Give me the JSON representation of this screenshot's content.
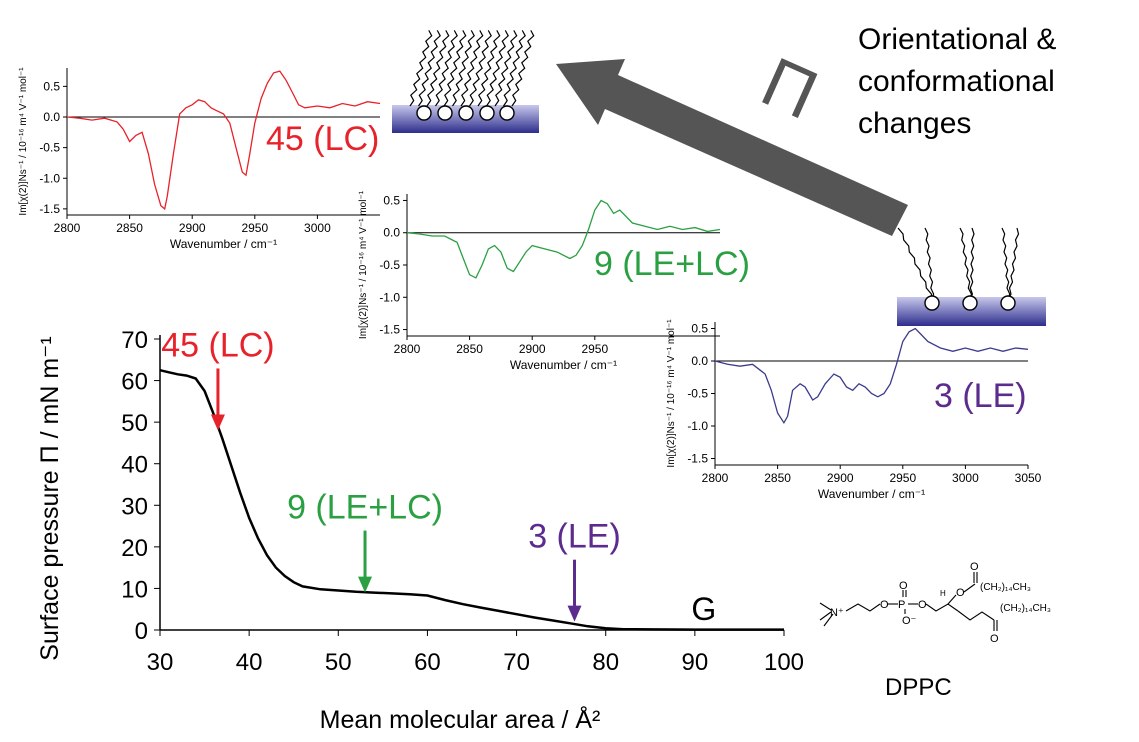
{
  "orientation_text": [
    "Orientational &",
    "conformational",
    "changes"
  ],
  "pressure_symbol": "Π",
  "molecule": {
    "name": "DPPC"
  },
  "colors": {
    "lc": "#e8222b",
    "lele": "#2aa042",
    "le": "#5b2c8e",
    "le_spec": "#3b3b8e",
    "arrow": "#555555"
  },
  "chart_data": [
    {
      "id": "isotherm",
      "type": "line",
      "title": "",
      "xlabel": "Mean molecular area / Å²",
      "ylabel": "Surface pressure Π / mN m⁻¹",
      "xlim": [
        30,
        100
      ],
      "ylim": [
        0,
        70
      ],
      "xticks": [
        30,
        40,
        50,
        60,
        70,
        80,
        90,
        100
      ],
      "yticks": [
        0,
        10,
        20,
        30,
        40,
        50,
        60,
        70
      ],
      "grid": false,
      "series": [
        {
          "x": [
            30,
            31,
            32,
            33,
            34,
            35,
            36,
            37,
            38,
            39,
            40,
            41,
            42,
            43,
            44,
            45,
            46,
            48,
            50,
            52,
            54,
            56,
            58,
            60,
            62,
            64,
            66,
            68,
            70,
            72,
            74,
            76,
            78,
            80,
            82,
            85,
            90,
            95,
            100
          ],
          "y": [
            62.5,
            62,
            61.5,
            61.2,
            60.5,
            57.5,
            52,
            46,
            39.5,
            33,
            27,
            22,
            18,
            15,
            13,
            11.5,
            10.5,
            9.8,
            9.5,
            9.2,
            9,
            8.8,
            8.6,
            8.3,
            7.2,
            6.2,
            5.4,
            4.6,
            3.8,
            3,
            2.3,
            1.6,
            0.9,
            0.4,
            0.2,
            0.15,
            0.1,
            0.1,
            0.1
          ]
        }
      ],
      "annotations": [
        {
          "text": "45 (LC)",
          "x": 36.5,
          "y": 48,
          "color": "#e8222b"
        },
        {
          "text": "9 (LE+LC)",
          "x": 53,
          "y": 9,
          "color": "#2aa042"
        },
        {
          "text": "3 (LE)",
          "x": 76.5,
          "y": 2,
          "color": "#5b2c8e"
        },
        {
          "text": "G",
          "x": 91,
          "y": 1.5,
          "color": "#000000"
        }
      ]
    },
    {
      "id": "spectrum-lc",
      "type": "line",
      "xlabel": "Wavenumber / cm⁻¹",
      "ylabel": "Im[χ(2)]Ns⁻¹ / 10⁻¹⁶ m⁴ V⁻¹ mol⁻¹",
      "xlim": [
        2800,
        3050
      ],
      "ylim": [
        -1.6,
        0.8
      ],
      "xticks": [
        2800,
        2850,
        2900,
        2950,
        3000
      ],
      "yticks": [
        0.5,
        0.0,
        -0.5,
        -1.0,
        -1.5
      ],
      "label": "45 (LC)",
      "series": [
        {
          "x": [
            2800,
            2810,
            2820,
            2830,
            2840,
            2845,
            2850,
            2855,
            2860,
            2865,
            2870,
            2875,
            2878,
            2880,
            2885,
            2890,
            2895,
            2900,
            2905,
            2910,
            2915,
            2920,
            2925,
            2930,
            2935,
            2940,
            2943,
            2946,
            2950,
            2955,
            2960,
            2965,
            2970,
            2975,
            2980,
            2985,
            2990,
            3000,
            3010,
            3020,
            3030,
            3040,
            3050
          ],
          "y": [
            0,
            -0.02,
            -0.05,
            -0.02,
            -0.08,
            -0.2,
            -0.4,
            -0.3,
            -0.25,
            -0.6,
            -1.1,
            -1.45,
            -1.5,
            -1.3,
            -0.6,
            0.05,
            0.15,
            0.2,
            0.28,
            0.25,
            0.15,
            0.1,
            0.05,
            -0.1,
            -0.5,
            -0.9,
            -0.95,
            -0.6,
            -0.1,
            0.3,
            0.55,
            0.72,
            0.75,
            0.6,
            0.4,
            0.2,
            0.15,
            0.18,
            0.15,
            0.22,
            0.18,
            0.25,
            0.22
          ]
        }
      ]
    },
    {
      "id": "spectrum-lele",
      "type": "line",
      "xlabel": "Wavenumber / cm⁻¹",
      "ylabel": "Im[χ(2)]Ns⁻¹ / 10⁻¹⁶ m⁴ V⁻¹ mol⁻¹",
      "xlim": [
        2800,
        3050
      ],
      "ylim": [
        -1.6,
        0.6
      ],
      "xticks": [
        2800,
        2850,
        2900,
        2950
      ],
      "yticks": [
        0.5,
        0.0,
        -0.5,
        -1.0,
        -1.5
      ],
      "label": "9 (LE+LC)",
      "series": [
        {
          "x": [
            2800,
            2810,
            2820,
            2830,
            2840,
            2845,
            2850,
            2855,
            2860,
            2865,
            2870,
            2875,
            2880,
            2885,
            2890,
            2895,
            2900,
            2910,
            2920,
            2930,
            2935,
            2940,
            2945,
            2950,
            2955,
            2960,
            2965,
            2970,
            2980,
            2990,
            3000,
            3010,
            3020,
            3030,
            3040,
            3050
          ],
          "y": [
            0,
            -0.02,
            -0.05,
            -0.05,
            -0.15,
            -0.4,
            -0.65,
            -0.7,
            -0.5,
            -0.25,
            -0.2,
            -0.3,
            -0.55,
            -0.6,
            -0.45,
            -0.3,
            -0.2,
            -0.25,
            -0.3,
            -0.4,
            -0.35,
            -0.2,
            0.05,
            0.35,
            0.5,
            0.45,
            0.3,
            0.35,
            0.15,
            0.1,
            0.05,
            0.1,
            0.05,
            0.08,
            0.02,
            0.05
          ]
        }
      ]
    },
    {
      "id": "spectrum-le",
      "type": "line",
      "xlabel": "Wavenumber / cm⁻¹",
      "ylabel": "Im[χ(2)]Ns⁻¹ / 10⁻¹⁶ m⁴ V⁻¹ mol⁻¹",
      "xlim": [
        2800,
        3050
      ],
      "ylim": [
        -1.6,
        0.6
      ],
      "xticks": [
        2800,
        2850,
        2900,
        2950,
        3000,
        3050
      ],
      "yticks": [
        0.5,
        0.0,
        -0.5,
        -1.0,
        -1.5
      ],
      "label": "3 (LE)",
      "series": [
        {
          "x": [
            2800,
            2810,
            2820,
            2830,
            2840,
            2845,
            2850,
            2855,
            2858,
            2862,
            2868,
            2872,
            2878,
            2882,
            2888,
            2895,
            2900,
            2905,
            2910,
            2915,
            2920,
            2925,
            2930,
            2935,
            2940,
            2945,
            2950,
            2955,
            2960,
            2965,
            2970,
            2980,
            2990,
            3000,
            3010,
            3020,
            3030,
            3040,
            3050
          ],
          "y": [
            0,
            -0.05,
            -0.08,
            -0.05,
            -0.2,
            -0.45,
            -0.8,
            -0.95,
            -0.85,
            -0.45,
            -0.35,
            -0.4,
            -0.6,
            -0.55,
            -0.35,
            -0.2,
            -0.25,
            -0.4,
            -0.45,
            -0.35,
            -0.4,
            -0.5,
            -0.55,
            -0.5,
            -0.35,
            -0.05,
            0.3,
            0.45,
            0.5,
            0.4,
            0.3,
            0.2,
            0.15,
            0.2,
            0.15,
            0.2,
            0.15,
            0.2,
            0.18
          ]
        }
      ]
    }
  ]
}
